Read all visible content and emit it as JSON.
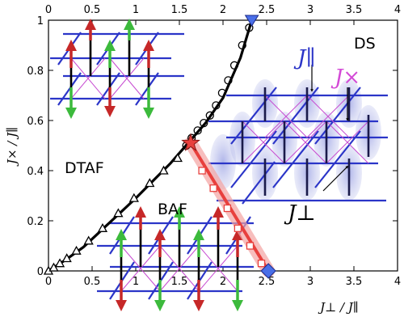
{
  "chart_data": {
    "type": "scatter",
    "xlim": [
      0,
      4
    ],
    "ylim": [
      0,
      1
    ],
    "x_ticks": [
      "0",
      "0.5",
      "1",
      "1.5",
      "2",
      "2.5",
      "3",
      "3.5",
      "4"
    ],
    "x_ticks_top": [
      "0",
      "0.5",
      "1",
      "1.5",
      "2",
      "2.5",
      "3",
      "3.5",
      "4"
    ],
    "y_ticks": [
      "0",
      "0.2",
      "0.4",
      "0.6",
      "0.8",
      "1"
    ],
    "xlabel": "J⊥ / J∥",
    "ylabel": "J× / J∥",
    "phase_labels": {
      "dtaf": "DTAF",
      "baf": "BAF",
      "ds": "DS"
    },
    "coupling_labels": {
      "parallel": "J∥",
      "cross": "J×",
      "perp": "J⊥"
    },
    "series": [
      {
        "marker": "triangle",
        "color": "#000000",
        "x": [
          0.0,
          0.06,
          0.13,
          0.21,
          0.32,
          0.46,
          0.62,
          0.8,
          0.98,
          1.16,
          1.32,
          1.48
        ],
        "y": [
          0.0,
          0.013,
          0.03,
          0.05,
          0.08,
          0.12,
          0.17,
          0.23,
          0.29,
          0.35,
          0.4,
          0.45
        ]
      },
      {
        "marker": "circle",
        "color": "#000000",
        "x": [
          1.58,
          1.64,
          1.71,
          1.78,
          1.85,
          1.92,
          1.99,
          2.06,
          2.13,
          2.22,
          2.3
        ],
        "y": [
          0.5,
          0.53,
          0.56,
          0.59,
          0.62,
          0.66,
          0.71,
          0.76,
          0.82,
          0.9,
          0.97
        ]
      },
      {
        "marker": "square",
        "color": "#e8403d",
        "x": [
          1.76,
          1.89,
          2.05,
          2.17,
          2.31,
          2.44
        ],
        "y": [
          0.4,
          0.33,
          0.25,
          0.17,
          0.1,
          0.03
        ]
      }
    ],
    "special_points": [
      {
        "marker": "star",
        "color": "#e8403d",
        "x": 1.63,
        "y": 0.51
      },
      {
        "marker": "inverted-triangle",
        "color": "#4a6fe8",
        "x": 2.33,
        "y": 1.0
      },
      {
        "marker": "diamond",
        "color": "#4a6fe8",
        "x": 2.52,
        "y": 0.0
      }
    ],
    "boundary_curve": {
      "x": [
        0.0,
        0.2,
        0.4,
        0.6,
        0.8,
        1.0,
        1.2,
        1.4,
        1.6,
        1.8,
        2.0,
        2.2,
        2.33
      ],
      "y": [
        0.0,
        0.045,
        0.095,
        0.16,
        0.225,
        0.29,
        0.36,
        0.43,
        0.51,
        0.59,
        0.69,
        0.85,
        1.0
      ]
    },
    "baf_ds_boundary": {
      "x": [
        1.63,
        2.52
      ],
      "y": [
        0.51,
        0.0
      ]
    }
  }
}
